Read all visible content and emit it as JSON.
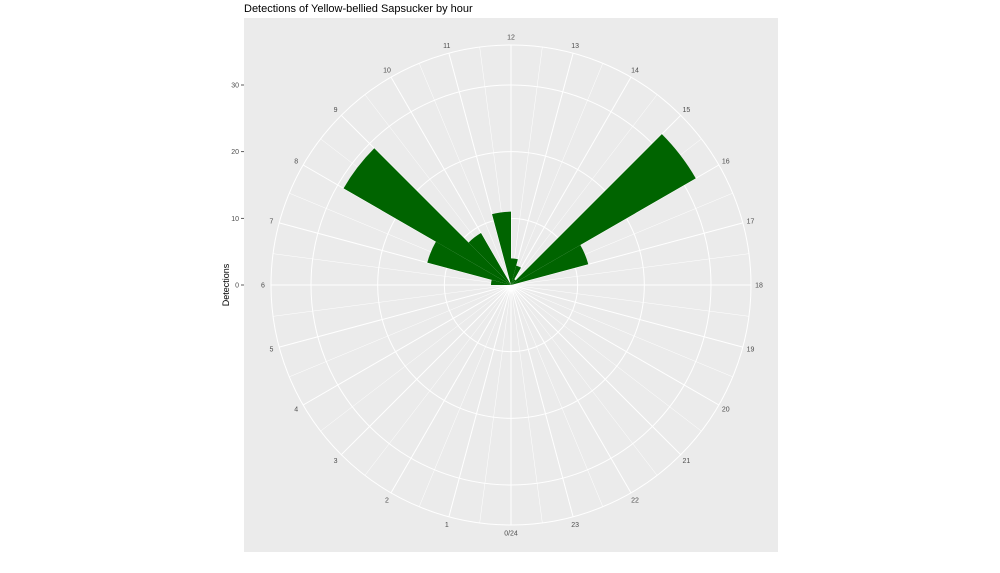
{
  "chart_data": {
    "type": "bar",
    "coord": "polar",
    "title": "Detections of Yellow-bellied Sapsucker by hour",
    "xlabel": "",
    "ylabel": "Detections",
    "categories": [
      0,
      1,
      2,
      3,
      4,
      5,
      6,
      7,
      8,
      9,
      10,
      11,
      12,
      13,
      14,
      15,
      16,
      17,
      18,
      19,
      20,
      21,
      22,
      23
    ],
    "theta_labels": [
      "0/24",
      "1",
      "2",
      "3",
      "4",
      "5",
      "6",
      "7",
      "8",
      "9",
      "10",
      "11",
      "12",
      "13",
      "14",
      "15",
      "16",
      "17",
      "18",
      "19",
      "20",
      "21",
      "22",
      "23"
    ],
    "values": [
      0,
      0,
      0,
      0,
      0,
      0,
      3,
      13,
      29,
      9,
      0,
      11,
      4,
      3,
      1,
      32,
      12,
      0,
      0,
      0,
      0,
      0,
      0,
      0
    ],
    "r_ticks": [
      "0",
      "10",
      "20",
      "30"
    ],
    "ylim": [
      0,
      36
    ],
    "grid": true,
    "bar_color": "#006400",
    "panel_bg": "#ebebeb"
  }
}
